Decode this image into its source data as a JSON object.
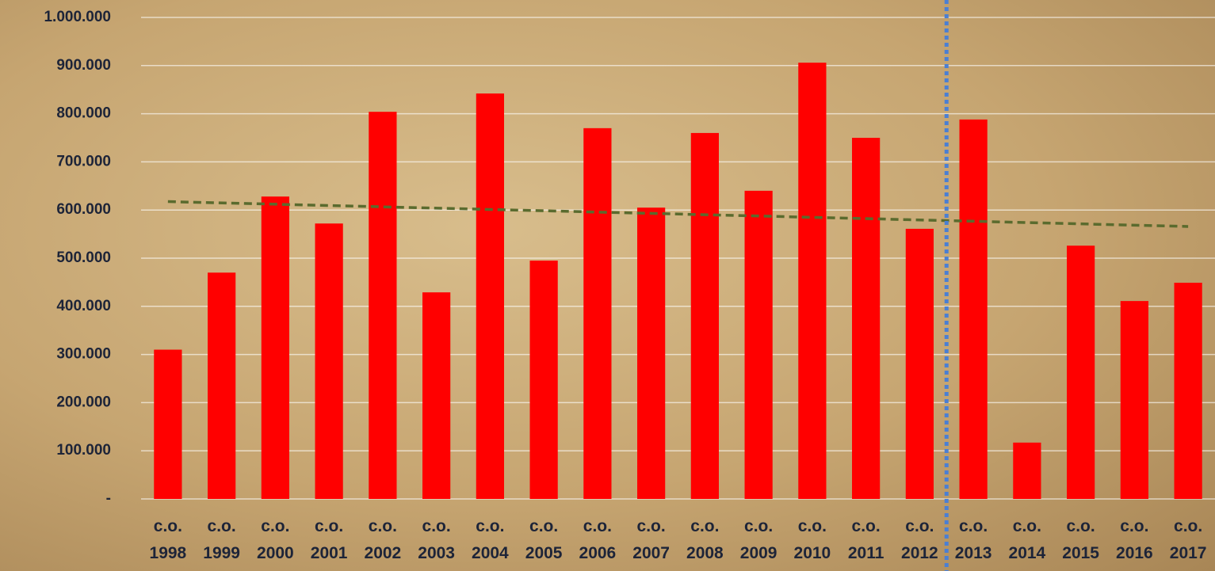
{
  "chart_data": {
    "type": "bar",
    "categories": [
      "c.o. 1998",
      "c.o. 1999",
      "c.o. 2000",
      "c.o. 2001",
      "c.o. 2002",
      "c.o. 2003",
      "c.o. 2004",
      "c.o. 2005",
      "c.o. 2006",
      "c.o. 2007",
      "c.o. 2008",
      "c.o. 2009",
      "c.o. 2010",
      "c.o. 2011",
      "c.o. 2012",
      "c.o. 2013",
      "c.o. 2014",
      "c.o. 2015",
      "c.o. 2016",
      "c.o. 2017"
    ],
    "values": [
      310000,
      470000,
      628000,
      572000,
      804000,
      429000,
      842000,
      495000,
      770000,
      605000,
      760000,
      640000,
      906000,
      750000,
      561000,
      788000,
      117000,
      526000,
      411000,
      449000
    ],
    "color": "#ff0000",
    "ylim": [
      0,
      1000000
    ],
    "yticks": [
      {
        "value": 0,
        "label": "-"
      },
      {
        "value": 100000,
        "label": "100.000"
      },
      {
        "value": 200000,
        "label": "200.000"
      },
      {
        "value": 300000,
        "label": "300.000"
      },
      {
        "value": 400000,
        "label": "400.000"
      },
      {
        "value": 500000,
        "label": "500.000"
      },
      {
        "value": 600000,
        "label": "600.000"
      },
      {
        "value": 700000,
        "label": "700.000"
      },
      {
        "value": 800000,
        "label": "800.000"
      },
      {
        "value": 900000,
        "label": "900.000"
      },
      {
        "value": 1000000,
        "label": "1.000.000"
      }
    ],
    "grid": true,
    "trendline": true,
    "trendline_color": "#5a6b2e",
    "divider": {
      "between": [
        14,
        15
      ],
      "color": "#4a7fd4"
    }
  }
}
